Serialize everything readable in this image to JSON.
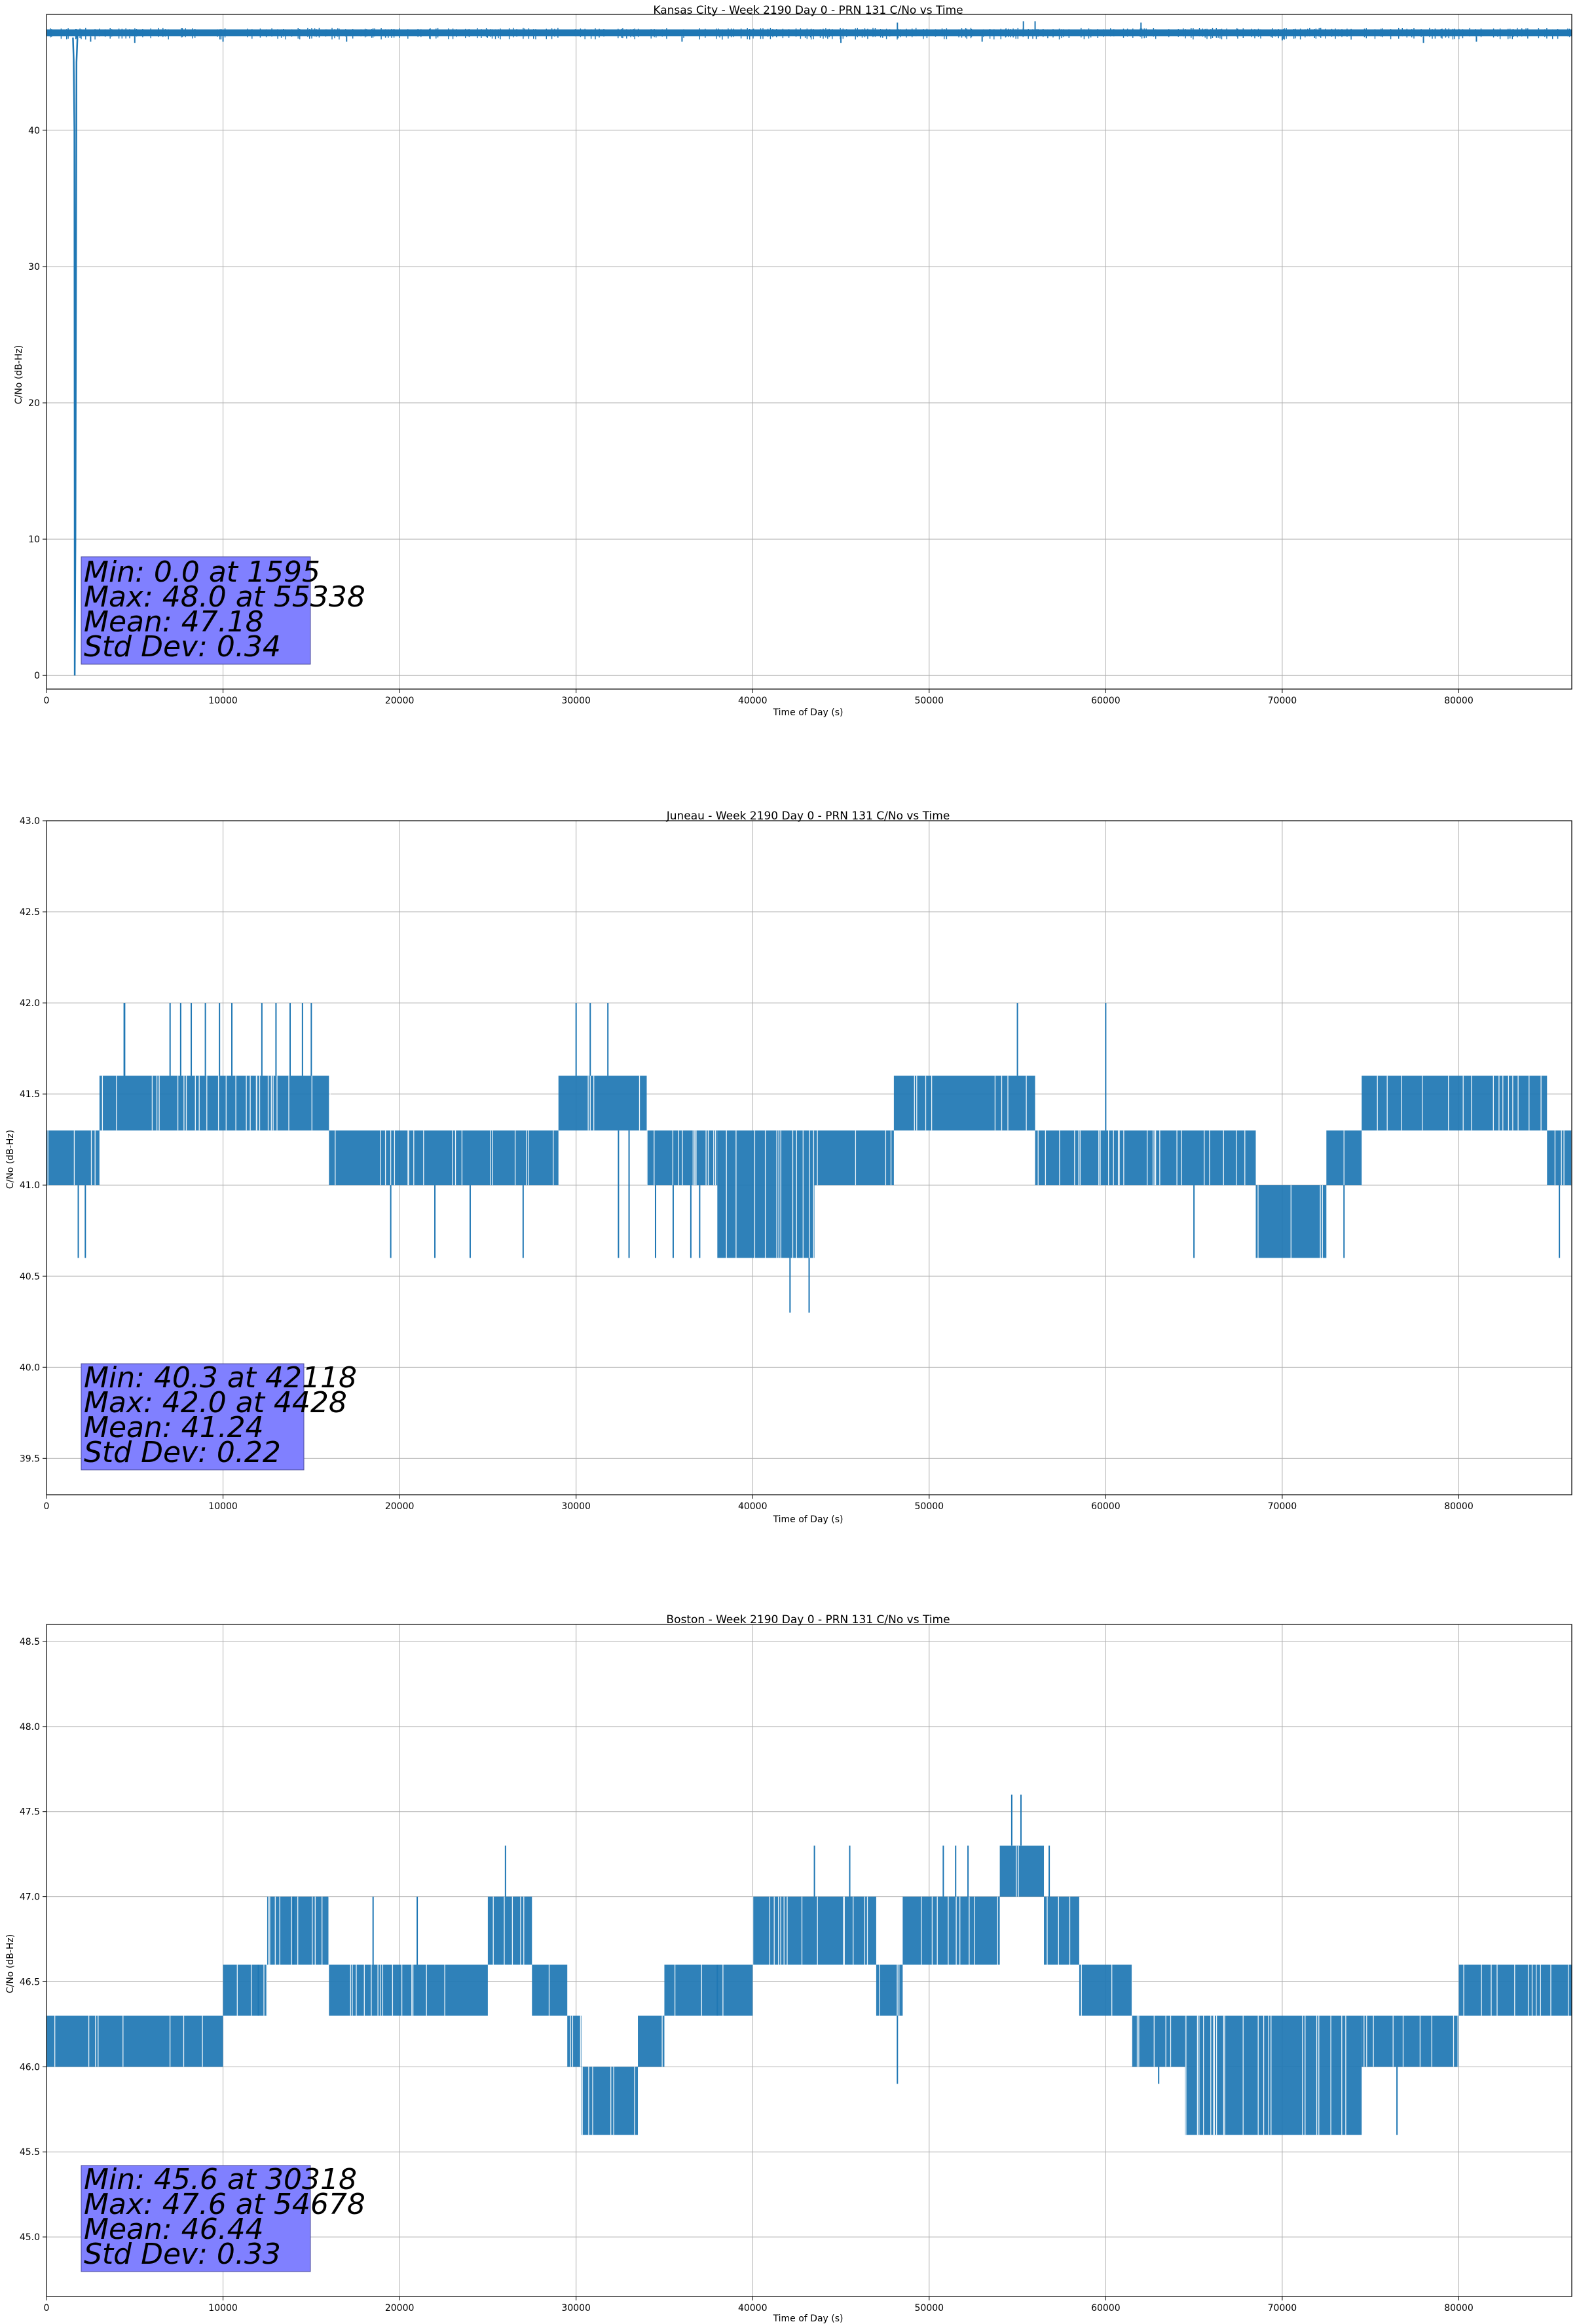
{
  "chart_data": [
    {
      "type": "line",
      "title": "Kansas City - Week 2190 Day 0 - PRN 131 C/No vs Time",
      "xlabel": "Time of Day (s)",
      "ylabel": "C/No (dB-Hz)",
      "xlim": [
        0,
        86400
      ],
      "ylim": [
        -1,
        48.5
      ],
      "xticks": [
        0,
        10000,
        20000,
        30000,
        40000,
        50000,
        60000,
        70000,
        80000
      ],
      "yticks": [
        0,
        10,
        20,
        30,
        40
      ],
      "ytick_labels": [
        "0",
        "10",
        "20",
        "30",
        "40"
      ],
      "grid": true,
      "series_color": "#1f77b4",
      "band": {
        "x_start": 0,
        "x_end": 86400,
        "low": 46.9,
        "high": 47.4
      },
      "spikes_up": [
        [
          56000,
          48.0
        ],
        [
          55338,
          48.0
        ],
        [
          48200,
          47.9
        ],
        [
          62000,
          47.9
        ]
      ],
      "spikes_down": [
        [
          2500,
          46.5
        ],
        [
          5000,
          46.4
        ],
        [
          10000,
          46.5
        ],
        [
          17000,
          46.5
        ],
        [
          36000,
          46.5
        ],
        [
          45000,
          46.4
        ],
        [
          53000,
          46.5
        ],
        [
          70000,
          46.6
        ],
        [
          78000,
          46.4
        ],
        [
          81000,
          46.5
        ]
      ],
      "acquisition_dip": [
        [
          1500,
          46.8
        ],
        [
          1540,
          45.2
        ],
        [
          1580,
          40.0
        ],
        [
          1595,
          13.5
        ],
        [
          1598,
          0.0
        ],
        [
          1640,
          10.0
        ],
        [
          1700,
          45.0
        ],
        [
          1760,
          47.0
        ]
      ],
      "stats": {
        "min": "Min: 0.0 at 1595",
        "max": "Max: 48.0 at 55338",
        "mean": "Mean: 47.18",
        "std": "Std Dev: 0.34"
      }
    },
    {
      "type": "line",
      "title": "Juneau - Week 2190 Day 0 - PRN 131 C/No vs Time",
      "xlabel": "Time of Day (s)",
      "ylabel": "C/No (dB-Hz)",
      "xlim": [
        0,
        86400
      ],
      "ylim": [
        39.3,
        43.0
      ],
      "xticks": [
        0,
        10000,
        20000,
        30000,
        40000,
        50000,
        60000,
        70000,
        80000
      ],
      "yticks": [
        39.5,
        40.0,
        40.5,
        41.0,
        41.5,
        42.0,
        42.5,
        43.0
      ],
      "ytick_labels": [
        "39.5",
        "40.0",
        "40.5",
        "41.0",
        "41.5",
        "42.0",
        "42.5",
        "43.0"
      ],
      "grid": true,
      "series_color": "#1f77b4",
      "segments": [
        [
          0,
          3000,
          41.0,
          41.3
        ],
        [
          3000,
          16000,
          41.3,
          41.6
        ],
        [
          16000,
          29000,
          41.0,
          41.3
        ],
        [
          29000,
          34000,
          41.3,
          41.6
        ],
        [
          34000,
          38000,
          41.0,
          41.3
        ],
        [
          38000,
          43500,
          40.6,
          41.3
        ],
        [
          43500,
          48000,
          41.0,
          41.3
        ],
        [
          48000,
          56000,
          41.3,
          41.6
        ],
        [
          56000,
          68500,
          41.0,
          41.3
        ],
        [
          68500,
          72500,
          40.6,
          41.0
        ],
        [
          72500,
          74500,
          41.0,
          41.3
        ],
        [
          74500,
          85000,
          41.3,
          41.6
        ],
        [
          85000,
          86400,
          41.0,
          41.3
        ]
      ],
      "spikes": [
        [
          1800,
          40.6
        ],
        [
          2200,
          40.6
        ],
        [
          4400,
          42.0
        ],
        [
          4428,
          42.0
        ],
        [
          7000,
          42.0
        ],
        [
          7600,
          42.0
        ],
        [
          8200,
          42.0
        ],
        [
          9000,
          42.0
        ],
        [
          9800,
          42.0
        ],
        [
          10500,
          42.0
        ],
        [
          12200,
          42.0
        ],
        [
          13000,
          42.0
        ],
        [
          13800,
          42.0
        ],
        [
          14500,
          42.0
        ],
        [
          15000,
          42.0
        ],
        [
          19500,
          40.6
        ],
        [
          22000,
          40.6
        ],
        [
          24000,
          40.6
        ],
        [
          27000,
          40.6
        ],
        [
          30000,
          42.0
        ],
        [
          30800,
          42.0
        ],
        [
          31800,
          42.0
        ],
        [
          32400,
          40.6
        ],
        [
          33000,
          40.6
        ],
        [
          34500,
          40.6
        ],
        [
          35500,
          40.6
        ],
        [
          36500,
          40.6
        ],
        [
          37000,
          40.6
        ],
        [
          42118,
          40.3
        ],
        [
          43200,
          40.3
        ],
        [
          55000,
          42.0
        ],
        [
          60000,
          42.0
        ],
        [
          65000,
          40.6
        ],
        [
          73500,
          40.6
        ],
        [
          85700,
          40.6
        ]
      ],
      "stats": {
        "min": "Min: 40.3 at 42118",
        "max": "Max: 42.0 at 4428",
        "mean": "Mean: 41.24",
        "std": "Std Dev: 0.22"
      }
    },
    {
      "type": "line",
      "title": "Boston - Week 2190 Day 0 - PRN 131 C/No vs Time",
      "xlabel": "Time of Day (s)",
      "ylabel": "C/No (dB-Hz)",
      "xlim": [
        0,
        86400
      ],
      "ylim": [
        44.65,
        48.6
      ],
      "xticks": [
        0,
        10000,
        20000,
        30000,
        40000,
        50000,
        60000,
        70000,
        80000
      ],
      "yticks": [
        45.0,
        45.5,
        46.0,
        46.5,
        47.0,
        47.5,
        48.0,
        48.5
      ],
      "ytick_labels": [
        "45.0",
        "45.5",
        "46.0",
        "46.5",
        "47.0",
        "47.5",
        "48.0",
        "48.5"
      ],
      "grid": true,
      "series_color": "#1f77b4",
      "segments": [
        [
          0,
          10000,
          46.0,
          46.3
        ],
        [
          10000,
          12500,
          46.3,
          46.6
        ],
        [
          12500,
          16000,
          46.6,
          47.0
        ],
        [
          16000,
          25000,
          46.3,
          46.6
        ],
        [
          25000,
          27500,
          46.6,
          47.0
        ],
        [
          27500,
          29500,
          46.3,
          46.6
        ],
        [
          29500,
          30300,
          46.0,
          46.3
        ],
        [
          30300,
          33500,
          45.6,
          46.0
        ],
        [
          33500,
          35000,
          46.0,
          46.3
        ],
        [
          35000,
          40000,
          46.3,
          46.6
        ],
        [
          40000,
          47000,
          46.6,
          47.0
        ],
        [
          47000,
          48500,
          46.3,
          46.6
        ],
        [
          48500,
          54000,
          46.6,
          47.0
        ],
        [
          54000,
          56500,
          47.0,
          47.3
        ],
        [
          56500,
          58500,
          46.6,
          47.0
        ],
        [
          58500,
          61500,
          46.3,
          46.6
        ],
        [
          61500,
          64500,
          46.0,
          46.3
        ],
        [
          64500,
          74500,
          45.6,
          46.3
        ],
        [
          74500,
          80000,
          46.0,
          46.3
        ],
        [
          80000,
          86400,
          46.3,
          46.6
        ]
      ],
      "spikes": [
        [
          12000,
          46.6
        ],
        [
          14000,
          47.0
        ],
        [
          18500,
          47.0
        ],
        [
          21000,
          47.0
        ],
        [
          26000,
          47.3
        ],
        [
          38000,
          46.6
        ],
        [
          43500,
          47.3
        ],
        [
          45500,
          47.3
        ],
        [
          48200,
          45.9
        ],
        [
          50800,
          47.3
        ],
        [
          51500,
          47.3
        ],
        [
          52200,
          47.3
        ],
        [
          54678,
          47.6
        ],
        [
          55200,
          47.6
        ],
        [
          56800,
          47.3
        ],
        [
          57500,
          46.6
        ],
        [
          63000,
          45.9
        ],
        [
          66500,
          45.6
        ],
        [
          73000,
          45.6
        ],
        [
          76500,
          45.6
        ]
      ],
      "stats": {
        "min": "Min: 45.6 at 30318",
        "max": "Max: 47.6 at 54678",
        "mean": "Mean: 46.44",
        "std": "Std Dev: 0.33"
      }
    }
  ]
}
